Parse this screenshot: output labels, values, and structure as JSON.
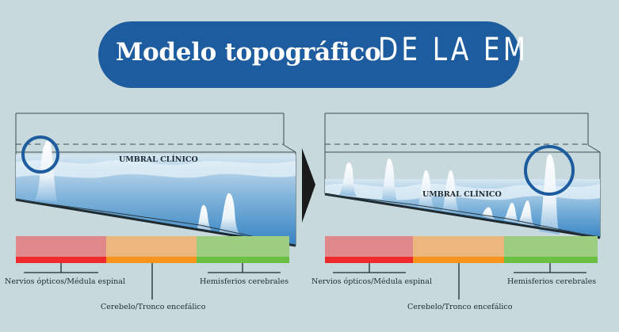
{
  "title": {
    "main": "Modelo topográfico",
    "accent": "DE LA EM"
  },
  "panels": [
    {
      "threshold_label": "UMBRAL CLÍNICO",
      "regions": [
        {
          "label": "Nervios ópticos/Médula espinal",
          "color": "#e0888a",
          "edge": "#ee2a2e"
        },
        {
          "label": "Cerebelo/Tronco encefálico",
          "color": "#ecb77e",
          "edge": "#f7941d"
        },
        {
          "label": "Hemisferios cerebrales",
          "color": "#9ccd80",
          "edge": "#6abf44"
        }
      ]
    },
    {
      "threshold_label": "UMBRAL CLÍNICO",
      "regions": [
        {
          "label": "Nervios ópticos/Médula espinal",
          "color": "#e0888a",
          "edge": "#ee2a2e"
        },
        {
          "label": "Cerebelo/Tronco encefálico",
          "color": "#ecb77e",
          "edge": "#f7941d"
        },
        {
          "label": "Hemisferios cerebrales",
          "color": "#9ccd80",
          "edge": "#6abf44"
        }
      ]
    }
  ],
  "colors": {
    "title_bg": "#1d5c9e",
    "water": "#3b86c4",
    "water_light": "#d6e8f3",
    "highlight_circle": "#1d5c9e",
    "background": "#c7d9dc"
  }
}
